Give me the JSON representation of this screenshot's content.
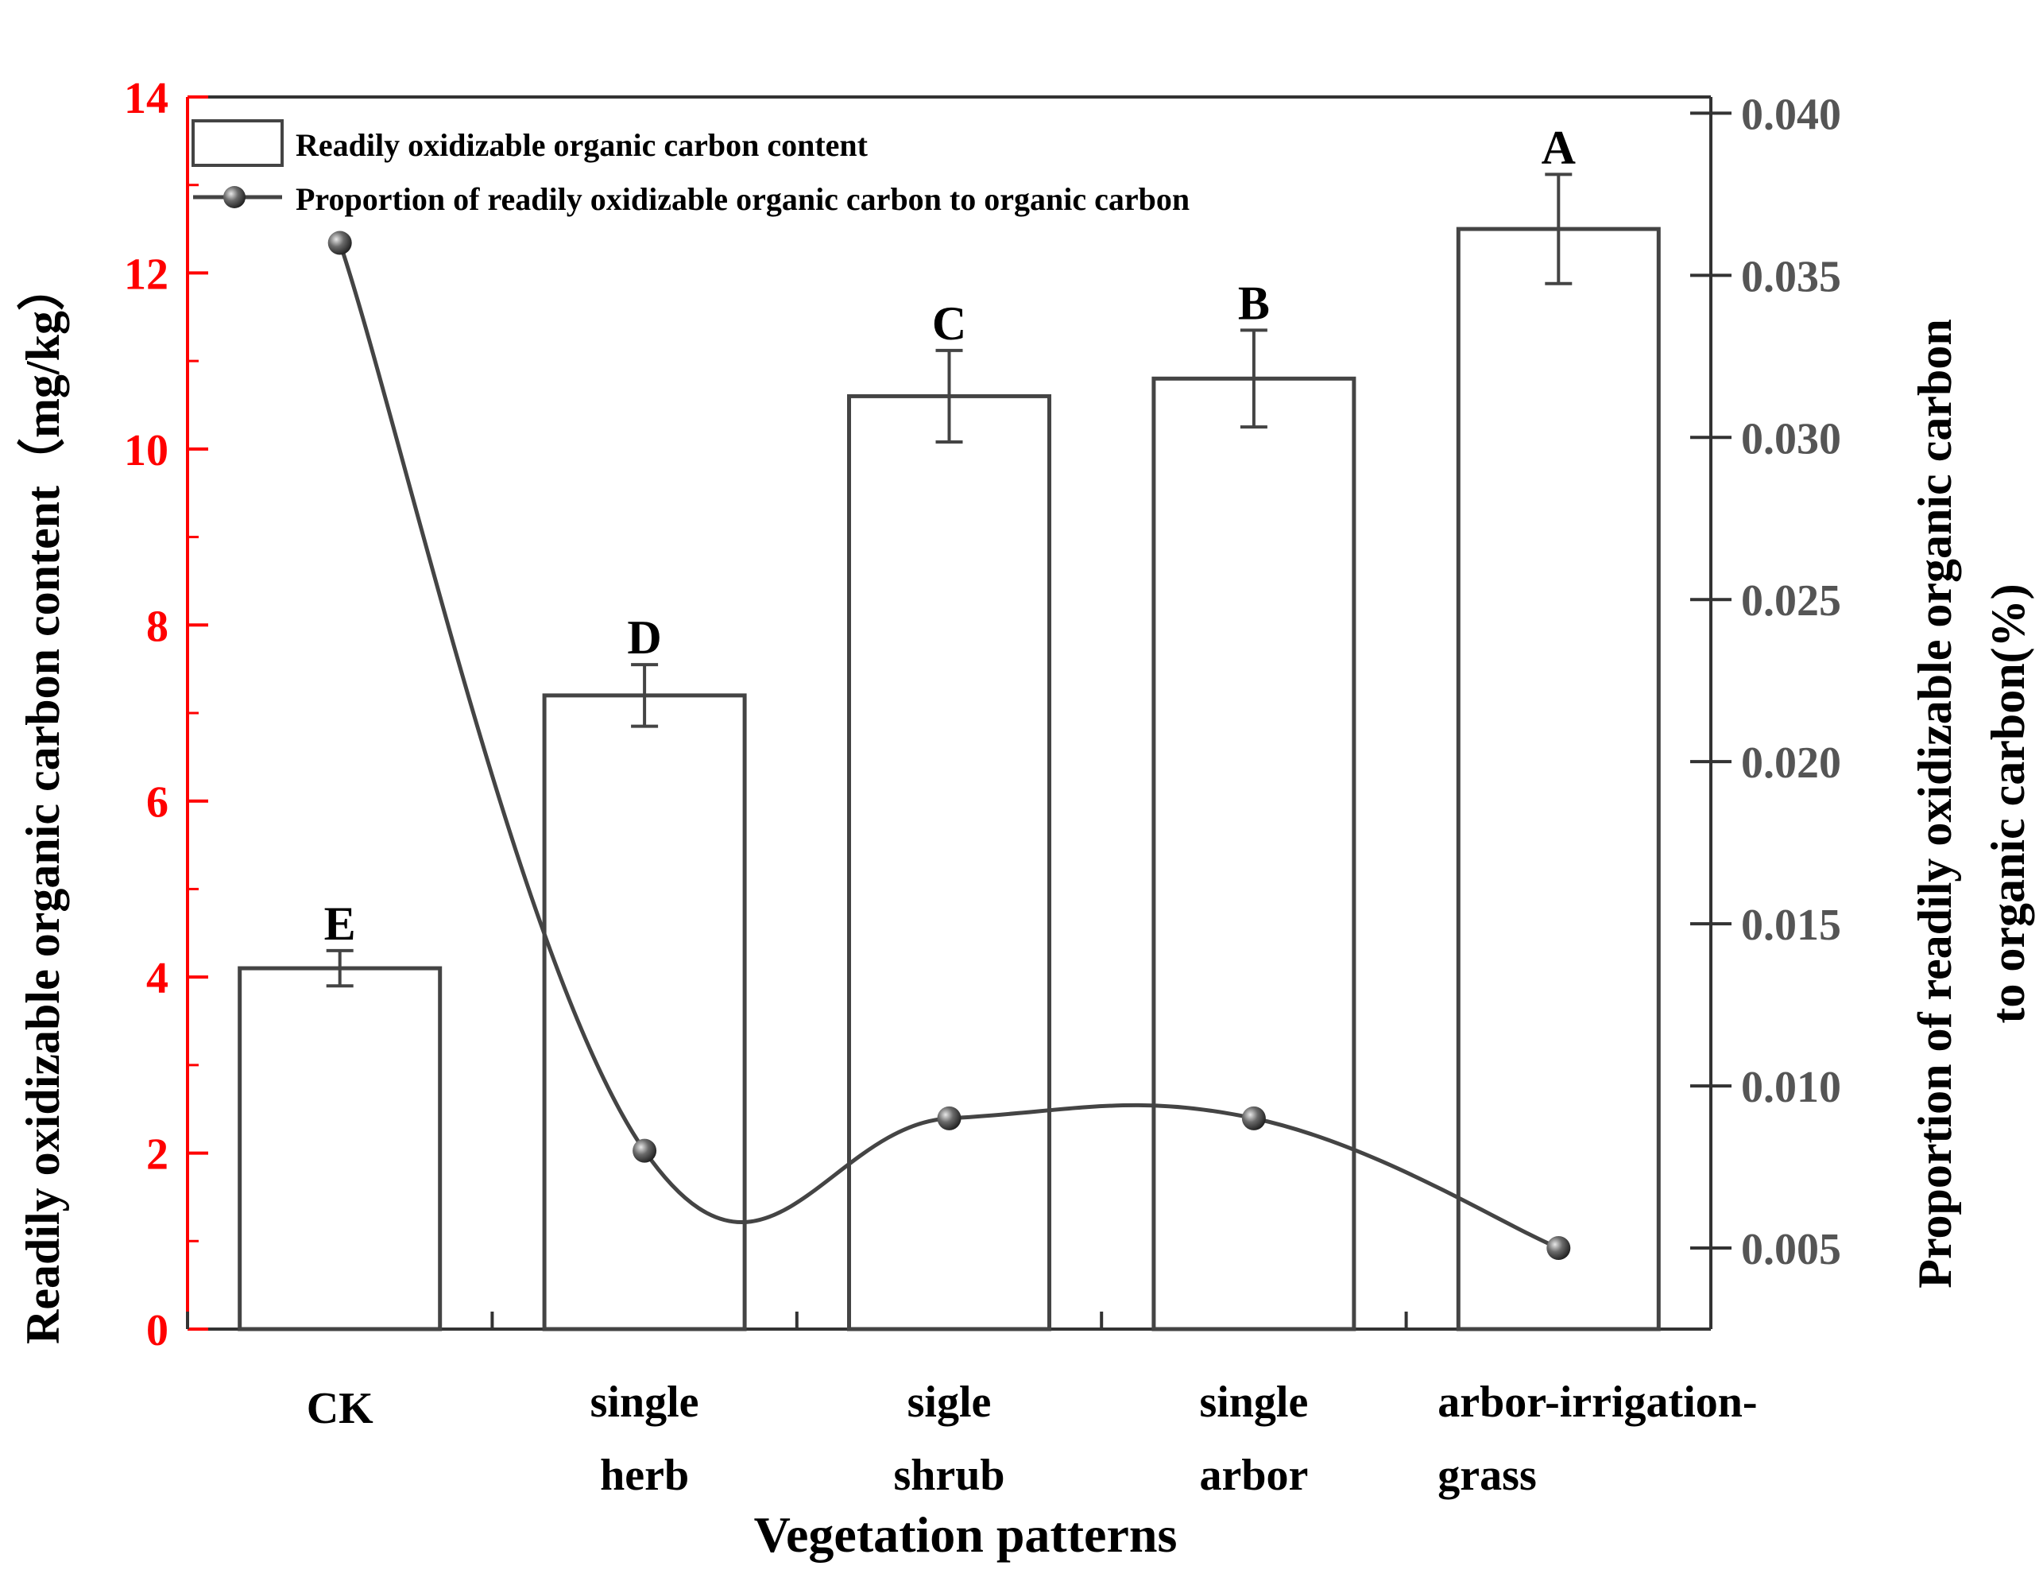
{
  "chart_data": {
    "type": "bar+line",
    "xlabel": "Vegetation patterns",
    "categories": [
      [
        "CK"
      ],
      [
        "single",
        "herb"
      ],
      [
        "sigle",
        "shrub"
      ],
      [
        "single",
        "arbor"
      ],
      [
        "arbor-irrigation-",
        "grass"
      ]
    ],
    "bars": {
      "name": "Readily oxidizable organic carbon content",
      "values": [
        4.1,
        7.2,
        10.6,
        10.8,
        12.5
      ],
      "errors": [
        0.2,
        0.35,
        0.52,
        0.55,
        0.62
      ],
      "letters": [
        "E",
        "D",
        "C",
        "B",
        "A"
      ]
    },
    "line": {
      "name": "Proportion of readily oxidizable organic carbon to organic carbon",
      "values": [
        0.036,
        0.008,
        0.009,
        0.009,
        0.005
      ]
    },
    "y_left": {
      "label": "Readily oxidizable organic carbon content（mg/kg）",
      "lim": [
        0,
        14
      ],
      "ticks": [
        0,
        2,
        4,
        6,
        8,
        10,
        12,
        14
      ],
      "tick_labels": [
        "0",
        "2",
        "4",
        "6",
        "8",
        "10",
        "12",
        "14"
      ],
      "color": "#ff0000"
    },
    "y_right": {
      "label_lines": [
        "Proportion of readily oxidizable organic carbon",
        "to organic carbon(%)"
      ],
      "lim": [
        0.0025,
        0.0405
      ],
      "ticks": [
        0.005,
        0.01,
        0.015,
        0.02,
        0.025,
        0.03,
        0.035,
        0.04
      ],
      "tick_labels": [
        "0.005",
        "0.010",
        "0.015",
        "0.020",
        "0.025",
        "0.030",
        "0.035",
        "0.040"
      ],
      "color": "#555555"
    },
    "legend": {
      "position": "top-left"
    },
    "series_color": "#444444"
  }
}
